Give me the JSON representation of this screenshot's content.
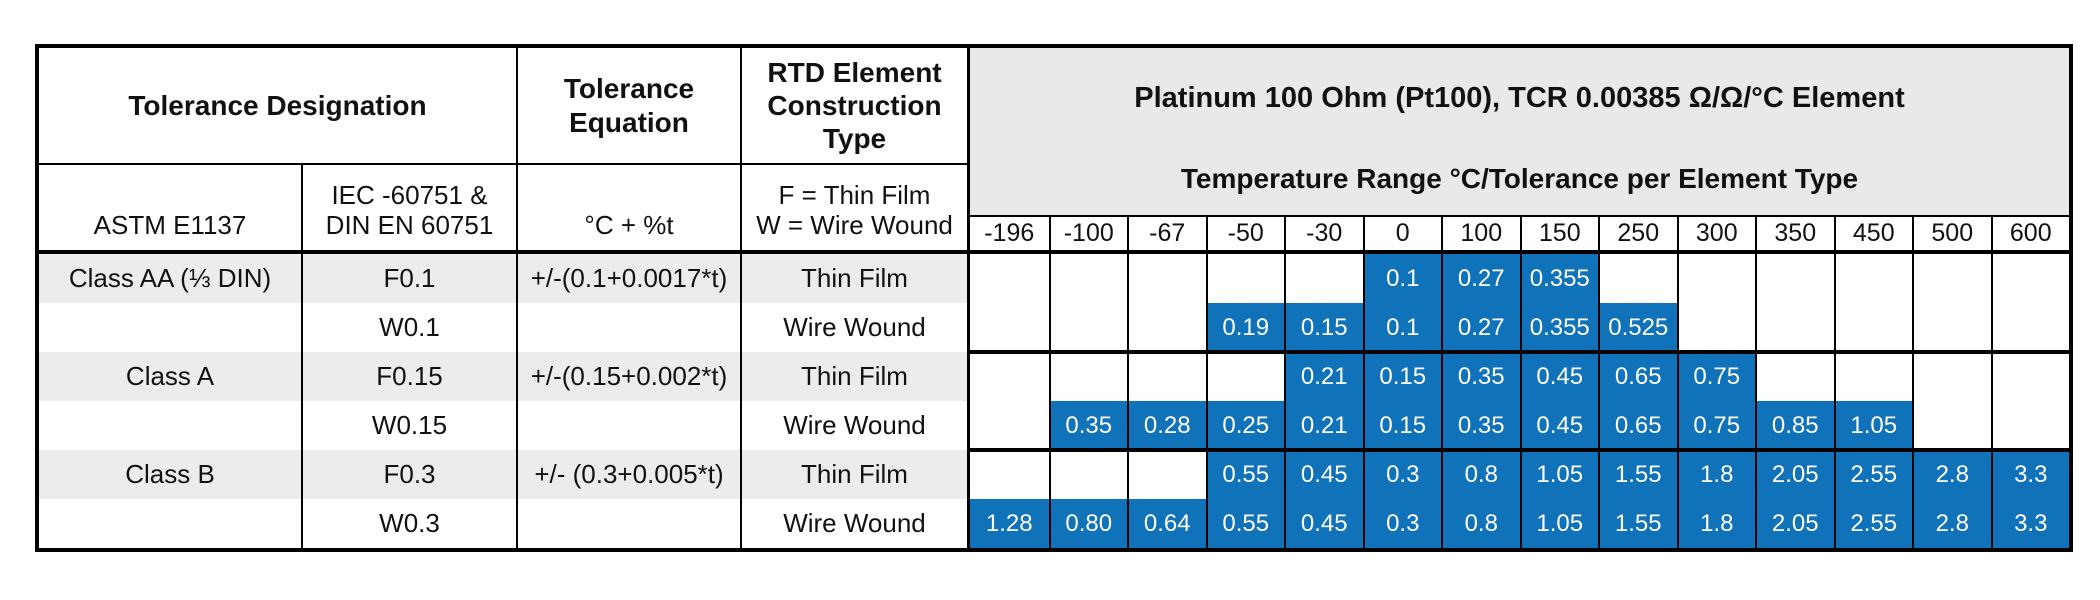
{
  "table": {
    "header": {
      "tolerance_designation": "Tolerance Designation",
      "tolerance_equation": "Tolerance Equation",
      "construction_type": "RTD Element Construction Type",
      "pt100_title": "Platinum 100 Ohm (Pt100), TCR 0.00385 Ω/Ω/°C Element",
      "pt100_subtitle": "Temperature Range °C/Tolerance per Element Type",
      "astm": "ASTM E1137",
      "iec_line1": "IEC -60751 &",
      "iec_line2": "DIN EN 60751",
      "equation_units": "°C + %t",
      "construction_f": "F = Thin Film",
      "construction_w": "W = Wire Wound"
    },
    "temperatures": [
      "-196",
      "-100",
      "-67",
      "-50",
      "-30",
      "0",
      "100",
      "150",
      "250",
      "300",
      "350",
      "450",
      "500",
      "600"
    ],
    "rows": [
      {
        "class_label": "Class AA (⅓ DIN)",
        "designation": "F0.1",
        "equation": "+/-(0.1+0.0017*t)",
        "construction": "Thin Film",
        "shaded": true,
        "values": [
          "",
          "",
          "",
          "",
          "",
          "0.1",
          "0.27",
          "0.355",
          "",
          "",
          "",
          "",
          "",
          ""
        ]
      },
      {
        "class_label": "",
        "designation": "W0.1",
        "equation": "",
        "construction": "Wire Wound",
        "shaded": false,
        "values": [
          "",
          "",
          "",
          "0.19",
          "0.15",
          "0.1",
          "0.27",
          "0.355",
          "0.525",
          "",
          "",
          "",
          "",
          ""
        ]
      },
      {
        "class_label": "Class A",
        "designation": "F0.15",
        "equation": "+/-(0.15+0.002*t)",
        "construction": "Thin Film",
        "shaded": true,
        "values": [
          "",
          "",
          "",
          "",
          "0.21",
          "0.15",
          "0.35",
          "0.45",
          "0.65",
          "0.75",
          "",
          "",
          "",
          ""
        ]
      },
      {
        "class_label": "",
        "designation": "W0.15",
        "equation": "",
        "construction": "Wire Wound",
        "shaded": false,
        "values": [
          "",
          "0.35",
          "0.28",
          "0.25",
          "0.21",
          "0.15",
          "0.35",
          "0.45",
          "0.65",
          "0.75",
          "0.85",
          "1.05",
          "",
          ""
        ]
      },
      {
        "class_label": "Class B",
        "designation": "F0.3",
        "equation": "+/- (0.3+0.005*t)",
        "construction": "Thin Film",
        "shaded": true,
        "values": [
          "",
          "",
          "",
          "0.55",
          "0.45",
          "0.3",
          "0.8",
          "1.05",
          "1.55",
          "1.8",
          "2.05",
          "2.55",
          "2.8",
          "3.3"
        ]
      },
      {
        "class_label": "",
        "designation": "W0.3",
        "equation": "",
        "construction": "Wire Wound",
        "shaded": false,
        "values": [
          "1.28",
          "0.80",
          "0.64",
          "0.55",
          "0.45",
          "0.3",
          "0.8",
          "1.05",
          "1.55",
          "1.8",
          "2.05",
          "2.55",
          "2.8",
          "3.3"
        ]
      }
    ],
    "colors": {
      "highlight_blue": "#1072b8",
      "header_gray": "#e9e9e9",
      "row_gray": "#ececec",
      "border_black": "#000000"
    }
  }
}
